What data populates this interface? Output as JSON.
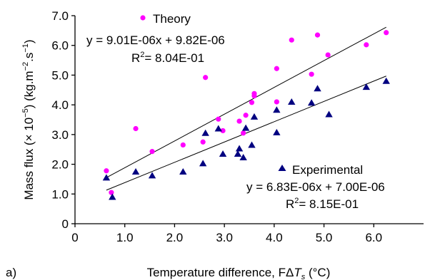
{
  "chart_data": {
    "type": "scatter",
    "panel_label": "a)",
    "xlabel_prefix": "Temperature difference, F",
    "xlabel_delta": "Δ",
    "xlabel_var": "T",
    "xlabel_sub": "s",
    "xlabel_unit": " (°C)",
    "ylabel_main": "Mass flux (× 10",
    "ylabel_exp": "−5",
    "ylabel_unit": ") (kg.m",
    "ylabel_exp2": "−2",
    "ylabel_unit2": ".s",
    "ylabel_exp3": "−1",
    "ylabel_close": ")",
    "xlim": [
      0,
      7.0
    ],
    "ylim": [
      0,
      7.0
    ],
    "xticks": [
      "0",
      "1.0",
      "2.0",
      "3.0",
      "4.0",
      "5.0",
      "6.0"
    ],
    "xtick_values": [
      0,
      1,
      2,
      3,
      4,
      5,
      6
    ],
    "yticks": [
      "0",
      "1.0",
      "2.0",
      "3.0",
      "4.0",
      "5.0",
      "6.0",
      "7.0"
    ],
    "ytick_values": [
      0,
      1,
      2,
      3,
      4,
      5,
      6,
      7
    ],
    "grid": false,
    "series": [
      {
        "name": "Theory",
        "marker": "circle",
        "color": "#FF00FF",
        "equation": "y = 9.01E-06x + 9.82E-06",
        "r2_label": "R",
        "r2_sup": "2",
        "r2_value": "= 8.04E-01",
        "trend": {
          "slope": 0.901,
          "intercept": 0.982
        },
        "points": [
          [
            0.63,
            1.78
          ],
          [
            0.73,
            1.05
          ],
          [
            1.22,
            3.2
          ],
          [
            1.55,
            2.43
          ],
          [
            2.17,
            2.65
          ],
          [
            2.57,
            2.75
          ],
          [
            2.62,
            4.92
          ],
          [
            2.88,
            3.52
          ],
          [
            2.97,
            3.13
          ],
          [
            3.3,
            3.45
          ],
          [
            3.38,
            3.05
          ],
          [
            3.43,
            3.65
          ],
          [
            3.55,
            4.08
          ],
          [
            3.6,
            4.3
          ],
          [
            3.6,
            4.38
          ],
          [
            4.05,
            4.1
          ],
          [
            4.05,
            5.22
          ],
          [
            4.35,
            6.18
          ],
          [
            4.75,
            5.03
          ],
          [
            4.87,
            6.35
          ],
          [
            5.08,
            5.68
          ],
          [
            5.85,
            6.02
          ],
          [
            6.25,
            6.43
          ]
        ]
      },
      {
        "name": "Experimental",
        "marker": "triangle",
        "color": "#000080",
        "equation": "y = 6.83E-06x + 7.00E-06",
        "r2_label": "R",
        "r2_sup": "2",
        "r2_value": "= 8.15E-01",
        "trend": {
          "slope": 0.683,
          "intercept": 0.7
        },
        "points": [
          [
            0.63,
            1.55
          ],
          [
            0.75,
            0.9
          ],
          [
            1.22,
            1.75
          ],
          [
            1.55,
            1.62
          ],
          [
            2.17,
            1.75
          ],
          [
            2.57,
            2.03
          ],
          [
            2.62,
            3.05
          ],
          [
            2.88,
            3.2
          ],
          [
            2.97,
            2.35
          ],
          [
            3.27,
            2.35
          ],
          [
            3.3,
            2.53
          ],
          [
            3.38,
            2.23
          ],
          [
            3.43,
            3.22
          ],
          [
            3.55,
            2.65
          ],
          [
            3.6,
            3.6
          ],
          [
            4.05,
            3.83
          ],
          [
            4.05,
            3.07
          ],
          [
            4.35,
            4.1
          ],
          [
            4.75,
            4.07
          ],
          [
            4.87,
            4.55
          ],
          [
            5.1,
            3.68
          ],
          [
            5.85,
            4.6
          ],
          [
            6.25,
            4.8
          ]
        ]
      }
    ]
  }
}
